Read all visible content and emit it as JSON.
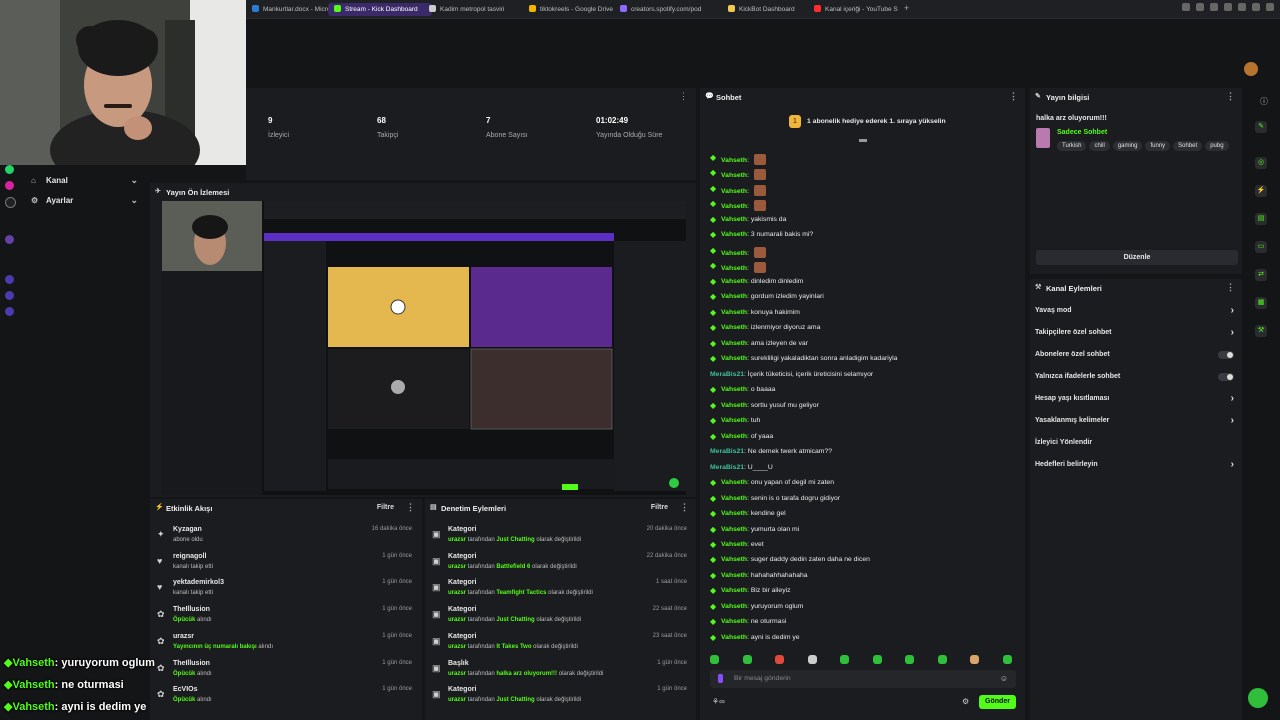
{
  "tabs": [
    {
      "label": "Mankurtlar.docx - Micros",
      "active": false,
      "icon_color": "#2b7cd3"
    },
    {
      "label": "Stream - Kick Dashboard",
      "active": true,
      "icon_color": "#53fc18"
    },
    {
      "label": "Kadim metropol tasviri",
      "active": false,
      "icon_color": "#cccccc"
    },
    {
      "label": "tiktokreels - Google Drive",
      "active": false,
      "icon_color": "#f4b400"
    },
    {
      "label": "creators.spotify.com/pod",
      "active": false,
      "icon_color": "#8a6cff"
    },
    {
      "label": "KickBot Dashboard",
      "active": false,
      "icon_color": "#f2c94c"
    },
    {
      "label": "Kanal içeriği - YouTube S",
      "active": false,
      "icon_color": "#ff2d2d"
    }
  ],
  "left_menu": [
    {
      "label": "Kanal",
      "icon": "home-icon"
    },
    {
      "label": "Ayarlar",
      "icon": "gear-icon"
    }
  ],
  "stats": [
    {
      "value": "9",
      "label": "İzleyici"
    },
    {
      "value": "68",
      "label": "Takipçi"
    },
    {
      "value": "7",
      "label": "Abone Sayısı"
    },
    {
      "value": "01:02:49",
      "label": "Yayında Olduğu Süre"
    }
  ],
  "preview": {
    "title": "Yayın Ön İzlemesi"
  },
  "activity": {
    "title": "Etkinlik Akışı",
    "filter": "Filtre",
    "items": [
      {
        "name": "Kyzagan",
        "sub": "abone oldu",
        "sub_green": "",
        "time": "16 dakika önce",
        "icon": "star-icon"
      },
      {
        "name": "reignagoll",
        "sub": "kanalı takip etti",
        "sub_green": "",
        "time": "1 gün önce",
        "icon": "heart-icon"
      },
      {
        "name": "yektademirkol3",
        "sub": "kanalı takip etti",
        "sub_green": "",
        "time": "1 gün önce",
        "icon": "heart-icon"
      },
      {
        "name": "TheIllusion",
        "sub": " alındı",
        "sub_green": "Öpücük",
        "time": "1 gün önce",
        "icon": "gift-icon"
      },
      {
        "name": "urazsr",
        "sub": " alındı",
        "sub_green": "Yayıncının üç numaralı bakışı",
        "time": "1 gün önce",
        "icon": "gift-icon"
      },
      {
        "name": "TheIllusion",
        "sub": " alındı",
        "sub_green": "Öpücük",
        "time": "1 gün önce",
        "icon": "gift-icon"
      },
      {
        "name": "EcVIOs",
        "sub": " alındı",
        "sub_green": "Öpücük",
        "time": "1 gün önce",
        "icon": "gift-icon"
      }
    ]
  },
  "moderation": {
    "title": "Denetim Eylemleri",
    "filter": "Filtre",
    "items": [
      {
        "title": "Kategori",
        "user": "urazsr",
        "mid": " tarafından ",
        "target": "Just Chatting",
        "end": " olarak değiştirildi",
        "time": "20 dakika önce"
      },
      {
        "title": "Kategori",
        "user": "urazsr",
        "mid": " tarafından ",
        "target": "Battlefield 6",
        "end": " olarak değiştirildi",
        "time": "22 dakika önce"
      },
      {
        "title": "Kategori",
        "user": "urazsr",
        "mid": " tarafından ",
        "target": "Teamfight Tactics",
        "end": " olarak değiştirildi",
        "time": "1 saat önce"
      },
      {
        "title": "Kategori",
        "user": "urazsr",
        "mid": " tarafından ",
        "target": "Just Chatting",
        "end": " olarak değiştirildi",
        "time": "22 saat önce"
      },
      {
        "title": "Kategori",
        "user": "urazsr",
        "mid": " tarafından ",
        "target": "It Takes Two",
        "end": " olarak değiştirildi",
        "time": "23 saat önce"
      },
      {
        "title": "Başlık",
        "user": "urazsr",
        "mid": " tarafından ",
        "target": "halka arz oluyorum!!!",
        "end": " olarak değiştirildi",
        "time": "1 gün önce"
      },
      {
        "title": "Kategori",
        "user": "urazsr",
        "mid": " tarafından ",
        "target": "Just Chatting",
        "end": " olarak değiştirildi",
        "time": "1 gün önce"
      }
    ]
  },
  "chat": {
    "title": "Sohbet",
    "banner": "1 abonelik hediye ederek 1. sıraya yükselin",
    "messages": [
      {
        "user": "Vahseth",
        "text": "",
        "emote": true,
        "alt": false
      },
      {
        "user": "Vahseth",
        "text": "",
        "emote": true,
        "alt": false
      },
      {
        "user": "Vahseth",
        "text": "",
        "emote": true,
        "alt": false
      },
      {
        "user": "Vahseth",
        "text": "",
        "emote": true,
        "alt": false
      },
      {
        "user": "Vahseth",
        "text": "yakismis da",
        "emote": false,
        "alt": false
      },
      {
        "user": "Vahseth",
        "text": "3 numarali bakis mi?",
        "emote": false,
        "alt": false
      },
      {
        "user": "Vahseth",
        "text": "",
        "emote": true,
        "alt": false
      },
      {
        "user": "Vahseth",
        "text": "",
        "emote": true,
        "alt": false
      },
      {
        "user": "Vahseth",
        "text": "dinledim dinledim",
        "emote": false,
        "alt": false
      },
      {
        "user": "Vahseth",
        "text": "gordum izledim yayinlari",
        "emote": false,
        "alt": false
      },
      {
        "user": "Vahseth",
        "text": "konuya hakimim",
        "emote": false,
        "alt": false
      },
      {
        "user": "Vahseth",
        "text": "izlenmiyor diyoruz ama",
        "emote": false,
        "alt": false
      },
      {
        "user": "Vahseth",
        "text": "ama izleyen de var",
        "emote": false,
        "alt": false
      },
      {
        "user": "Vahseth",
        "text": "surekliligi yakaladiktan sonra anladigim kadariyla",
        "emote": false,
        "alt": false
      },
      {
        "user": "MeraBis21",
        "text": "İçerik tüketicisi, içerik üreticisini selamıyor",
        "emote": false,
        "alt": true
      },
      {
        "user": "Vahseth",
        "text": "o baaaa",
        "emote": false,
        "alt": false
      },
      {
        "user": "Vahseth",
        "text": "sortlu yusuf mu geliyor",
        "emote": false,
        "alt": false
      },
      {
        "user": "Vahseth",
        "text": "tuh",
        "emote": false,
        "alt": false
      },
      {
        "user": "Vahseth",
        "text": "of yaaa",
        "emote": false,
        "alt": false
      },
      {
        "user": "MeraBis21",
        "text": "Ne demek twerk atmicam??",
        "emote": false,
        "alt": true
      },
      {
        "user": "MeraBis21",
        "text": "U____U",
        "emote": false,
        "alt": true
      },
      {
        "user": "Vahseth",
        "text": "onu yapan of degil mi zaten",
        "emote": false,
        "alt": false
      },
      {
        "user": "Vahseth",
        "text": "senin is o tarafa dogru gidiyor",
        "emote": false,
        "alt": false
      },
      {
        "user": "Vahseth",
        "text": "kendine gel",
        "emote": false,
        "alt": false
      },
      {
        "user": "Vahseth",
        "text": "yumurta olan mi",
        "emote": false,
        "alt": false
      },
      {
        "user": "Vahseth",
        "text": "evet",
        "emote": false,
        "alt": false
      },
      {
        "user": "Vahseth",
        "text": "suger daddy dedin zaten daha ne dicen",
        "emote": false,
        "alt": false
      },
      {
        "user": "Vahseth",
        "text": "hahahahhahahaha",
        "emote": false,
        "alt": false
      },
      {
        "user": "Vahseth",
        "text": "Biz bir aileyiz",
        "emote": false,
        "alt": false
      },
      {
        "user": "Vahseth",
        "text": "yuruyorum oglum",
        "emote": false,
        "alt": false
      },
      {
        "user": "Vahseth",
        "text": "ne oturmasi",
        "emote": false,
        "alt": false
      },
      {
        "user": "Vahseth",
        "text": "ayni is dedim ye",
        "emote": false,
        "alt": false
      }
    ],
    "input_placeholder": "Bir mesaj gönderin",
    "send_label": "Gönder"
  },
  "stream_info": {
    "title": "Yayın bilgisi",
    "stream_title": "halka arz oluyorum!!!",
    "category": "Sadece Sohbet",
    "tags": [
      "Turkish",
      "chill",
      "gaming",
      "funny",
      "Sohbet",
      "pubg"
    ],
    "edit_label": "Düzenle"
  },
  "channel_actions": {
    "title": "Kanal Eylemleri",
    "items": [
      {
        "label": "Yavaş mod",
        "control": "chevron"
      },
      {
        "label": "Takipçilere özel sohbet",
        "control": "chevron"
      },
      {
        "label": "Abonelere özel sohbet",
        "control": "toggle"
      },
      {
        "label": "Yalnızca ifadelerle sohbet",
        "control": "toggle"
      },
      {
        "label": "Hesap yaşı kısıtlaması",
        "control": "chevron"
      },
      {
        "label": "Yasaklanmış kelimeler",
        "control": "chevron"
      },
      {
        "label": "İzleyici Yönlendir",
        "control": "none"
      },
      {
        "label": "Hedefleri belirleyin",
        "control": "chevron"
      }
    ]
  },
  "overlay_captions": [
    {
      "user": "Vahseth",
      "text": "yuruyorum oglum"
    },
    {
      "user": "Vahseth",
      "text": "ne oturmasi"
    },
    {
      "user": "Vahseth",
      "text": "ayni is dedim ye"
    }
  ],
  "colors": {
    "accent": "#53fc18",
    "background": "#141517",
    "panel": "#1b1c1f"
  }
}
